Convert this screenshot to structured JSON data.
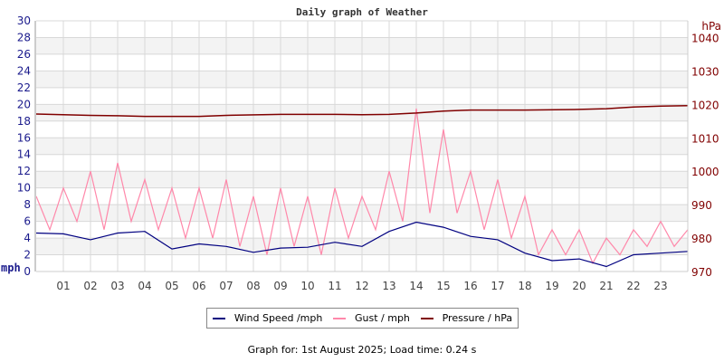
{
  "chart_data": {
    "type": "line",
    "title": "Daily graph of Weather",
    "y_left": {
      "unit_label": "mph",
      "range": [
        0,
        30
      ],
      "ticks": [
        0,
        2,
        4,
        6,
        8,
        10,
        12,
        14,
        16,
        18,
        20,
        22,
        24,
        26,
        28,
        30
      ]
    },
    "y_right": {
      "unit_label": "hPa",
      "range": [
        970,
        1045
      ],
      "ticks": [
        970,
        980,
        990,
        1000,
        1010,
        1020,
        1030,
        1040
      ]
    },
    "x": {
      "range_hours": [
        0,
        24
      ],
      "tick_labels": [
        "01",
        "02",
        "03",
        "04",
        "05",
        "06",
        "07",
        "08",
        "09",
        "10",
        "11",
        "12",
        "13",
        "14",
        "15",
        "16",
        "17",
        "18",
        "19",
        "20",
        "21",
        "22",
        "23"
      ]
    },
    "grid": true,
    "legend_placement": "bottom",
    "series": [
      {
        "name": "Wind Speed /mph",
        "color": "#000080",
        "axis": "left",
        "x": [
          0,
          1,
          2,
          3,
          4,
          5,
          6,
          7,
          8,
          9,
          10,
          11,
          12,
          13,
          14,
          15,
          16,
          17,
          18,
          19,
          20,
          21,
          22,
          23,
          24
        ],
        "values": [
          4.6,
          4.5,
          3.8,
          4.6,
          4.8,
          2.7,
          3.3,
          3.0,
          2.3,
          2.8,
          2.9,
          3.5,
          3.0,
          4.8,
          5.9,
          5.3,
          4.2,
          3.8,
          2.2,
          1.3,
          1.5,
          0.6,
          2.0,
          2.2,
          2.4
        ]
      },
      {
        "name": "Gust / mph",
        "color": "#ff88aa",
        "axis": "left",
        "x": [
          0,
          0.5,
          1,
          1.5,
          2,
          2.5,
          3,
          3.5,
          4,
          4.5,
          5,
          5.5,
          6,
          6.5,
          7,
          7.5,
          8,
          8.5,
          9,
          9.5,
          10,
          10.5,
          11,
          11.5,
          12,
          12.5,
          13,
          13.5,
          14,
          14.5,
          15,
          15.5,
          16,
          16.5,
          17,
          17.5,
          18,
          18.5,
          19,
          19.5,
          20,
          20.5,
          21,
          21.5,
          22,
          22.5,
          23,
          23.5,
          24
        ],
        "values": [
          9,
          5,
          10,
          6,
          12,
          5,
          13,
          6,
          11,
          5,
          10,
          4,
          10,
          4,
          11,
          3,
          9,
          2,
          10,
          3,
          9,
          2,
          10,
          4,
          9,
          5,
          12,
          6,
          19.5,
          7,
          17,
          7,
          12,
          5,
          11,
          4,
          9,
          2,
          5,
          2,
          5,
          1,
          4,
          2,
          5,
          3,
          6,
          3,
          5
        ]
      },
      {
        "name": "Pressure / hPa",
        "color": "#800000",
        "axis": "right",
        "x": [
          0,
          2,
          3,
          4,
          6,
          7,
          9,
          11,
          12,
          13,
          14,
          15,
          16,
          18,
          20,
          21,
          22,
          23,
          24
        ],
        "values": [
          1017.1,
          1016.7,
          1016.6,
          1016.4,
          1016.4,
          1016.7,
          1017.0,
          1017.0,
          1016.9,
          1017.0,
          1017.4,
          1018.0,
          1018.3,
          1018.3,
          1018.5,
          1018.7,
          1019.2,
          1019.5,
          1019.6
        ]
      }
    ]
  },
  "legend": {
    "items": [
      "Wind Speed /mph",
      "Gust / mph",
      "Pressure / hPa"
    ]
  },
  "footer": "Graph for: 1st August 2025; Load time: 0.24 s"
}
